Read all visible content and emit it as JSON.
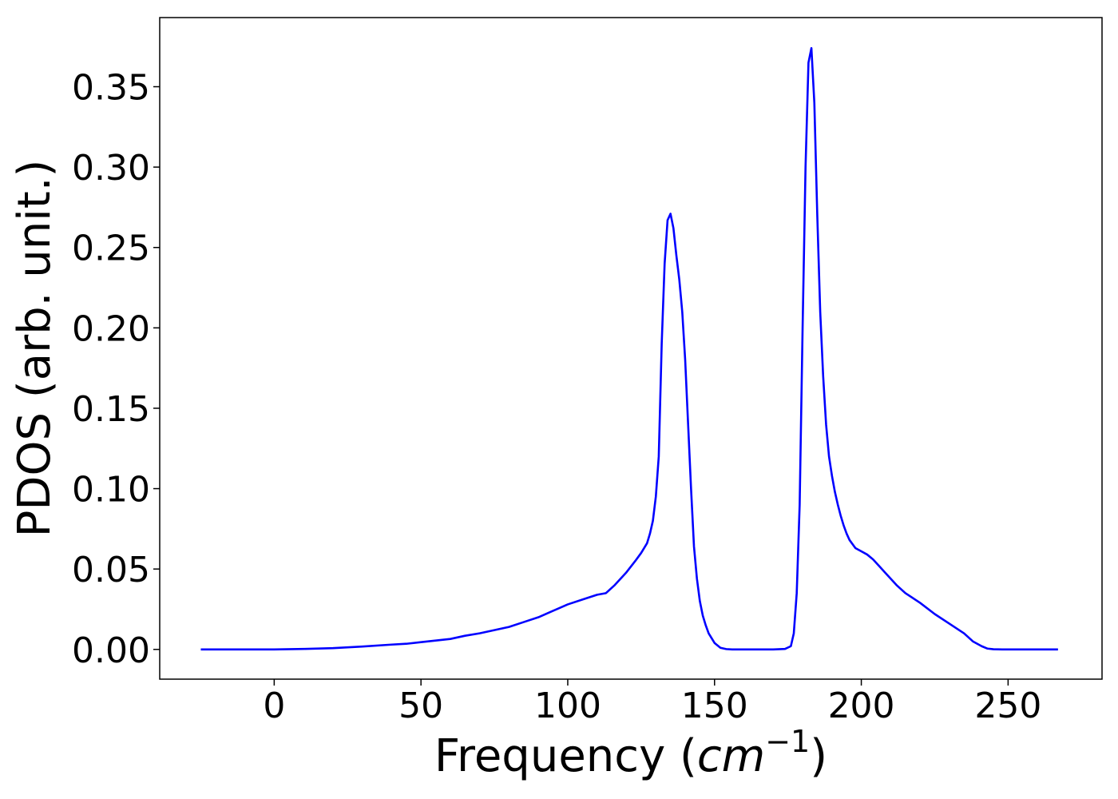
{
  "chart_data": {
    "type": "line",
    "title": "",
    "xlabel_prefix": "Frequency (",
    "xlabel_var": "cm",
    "xlabel_exp": "−1",
    "xlabel_suffix": ")",
    "ylabel": "PDOS (arb. unit.)",
    "xlim": [
      -39,
      282
    ],
    "ylim": [
      -0.0185,
      0.393
    ],
    "xticks": [
      0,
      50,
      100,
      150,
      200,
      250
    ],
    "yticks": [
      0.0,
      0.05,
      0.1,
      0.15,
      0.2,
      0.25,
      0.3,
      0.35
    ],
    "xtick_labels": [
      "0",
      "50",
      "100",
      "150",
      "200",
      "250"
    ],
    "ytick_labels": [
      "0.00",
      "0.05",
      "0.10",
      "0.15",
      "0.20",
      "0.25",
      "0.30",
      "0.35"
    ],
    "grid": false,
    "line_color": "#0000ff",
    "series": [
      {
        "x": [
          -25,
          0,
          10,
          20,
          30,
          40,
          45,
          50,
          55,
          60,
          65,
          70,
          75,
          80,
          85,
          90,
          95,
          100,
          105,
          110,
          113,
          116,
          120,
          123,
          125,
          127,
          128,
          129,
          130,
          131,
          132,
          133,
          134,
          135,
          136,
          137,
          138,
          139,
          140,
          141,
          142,
          143,
          144,
          145,
          146,
          147,
          148,
          150,
          152,
          154,
          156,
          158,
          160,
          165,
          170,
          174,
          176,
          177,
          178,
          179,
          180,
          181,
          182,
          183,
          184,
          185,
          186,
          187,
          188,
          189,
          190,
          191,
          192,
          193,
          194,
          195,
          196,
          198,
          200,
          202,
          204,
          206,
          208,
          210,
          212,
          215,
          220,
          225,
          230,
          235,
          238,
          241,
          243,
          245,
          248,
          255,
          267
        ],
        "y": [
          0.0,
          0.0,
          0.0003,
          0.0008,
          0.0018,
          0.003,
          0.0035,
          0.0045,
          0.0055,
          0.0065,
          0.0085,
          0.01,
          0.012,
          0.014,
          0.017,
          0.02,
          0.024,
          0.028,
          0.031,
          0.034,
          0.035,
          0.04,
          0.048,
          0.055,
          0.06,
          0.066,
          0.072,
          0.08,
          0.095,
          0.12,
          0.19,
          0.24,
          0.267,
          0.271,
          0.262,
          0.245,
          0.23,
          0.21,
          0.18,
          0.14,
          0.1,
          0.064,
          0.044,
          0.03,
          0.021,
          0.015,
          0.01,
          0.004,
          0.001,
          0.0002,
          0.0,
          0.0,
          0.0,
          0.0,
          0.0,
          0.0003,
          0.002,
          0.01,
          0.035,
          0.09,
          0.2,
          0.3,
          0.365,
          0.374,
          0.34,
          0.27,
          0.21,
          0.17,
          0.14,
          0.12,
          0.108,
          0.098,
          0.09,
          0.083,
          0.077,
          0.072,
          0.068,
          0.063,
          0.061,
          0.059,
          0.056,
          0.052,
          0.048,
          0.044,
          0.04,
          0.035,
          0.029,
          0.022,
          0.016,
          0.01,
          0.005,
          0.002,
          0.0005,
          0.0001,
          0.0,
          0.0,
          0.0
        ]
      }
    ]
  }
}
